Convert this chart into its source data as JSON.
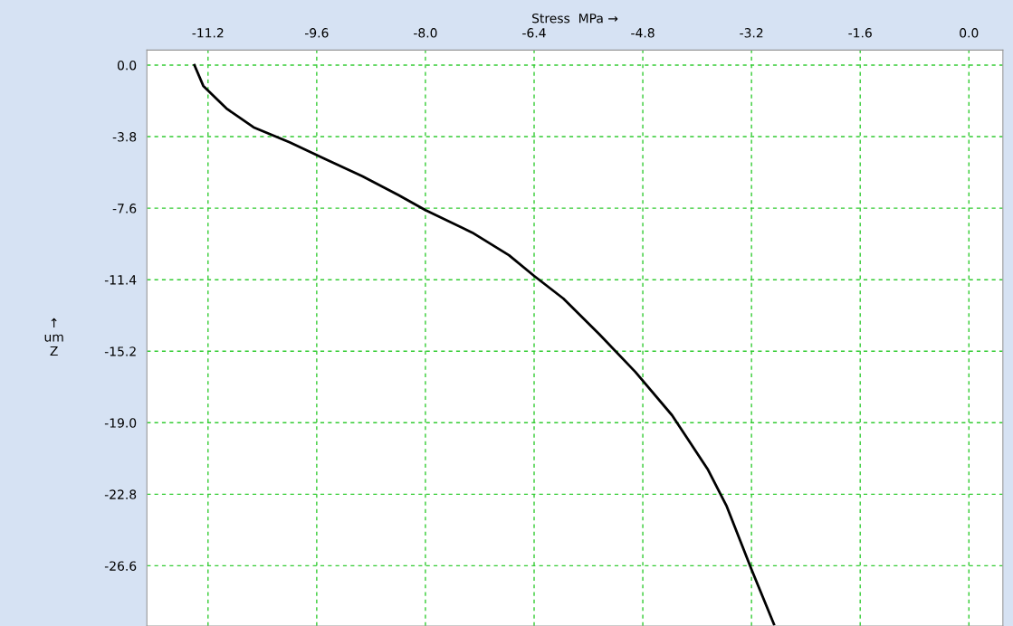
{
  "chart_data": {
    "type": "line",
    "xlabel": "Stress  MPa →",
    "ylabel": "↑\num\nZ",
    "series": [
      {
        "color": "#000000",
        "x": [
          -11.4,
          -11.27,
          -10.93,
          -10.53,
          -10.0,
          -9.47,
          -8.93,
          -8.4,
          -8.0,
          -7.31,
          -6.77,
          -6.4,
          -5.97,
          -5.44,
          -4.91,
          -4.37,
          -3.84,
          -3.57,
          -3.2,
          -2.87
        ],
        "values": [
          0.0,
          -1.1,
          -2.3,
          -3.3,
          -4.1,
          -5.0,
          -5.9,
          -6.9,
          -7.7,
          -8.9,
          -10.1,
          -11.2,
          -12.4,
          -14.3,
          -16.3,
          -18.6,
          -21.5,
          -23.4,
          -26.8,
          -29.7
        ]
      }
    ],
    "xlim": [
      -12.1,
      0.5
    ],
    "xticks": [
      -11.2,
      -9.6,
      {
        "value": -8.0,
        "label": "-8.0"
      },
      -6.4,
      -4.8,
      -3.2,
      -1.6,
      {
        "value": 0.0,
        "label": "0.0"
      }
    ],
    "ylim": [
      -29.8,
      0.8
    ],
    "yticks": [
      {
        "value": 0.0,
        "label": "0.0"
      },
      -3.8,
      -7.6,
      -11.4,
      -15.2,
      {
        "value": -19.0,
        "label": "-19.0"
      },
      -22.8,
      -26.6
    ],
    "grid": true,
    "marker": "none",
    "line_style": "solid"
  }
}
